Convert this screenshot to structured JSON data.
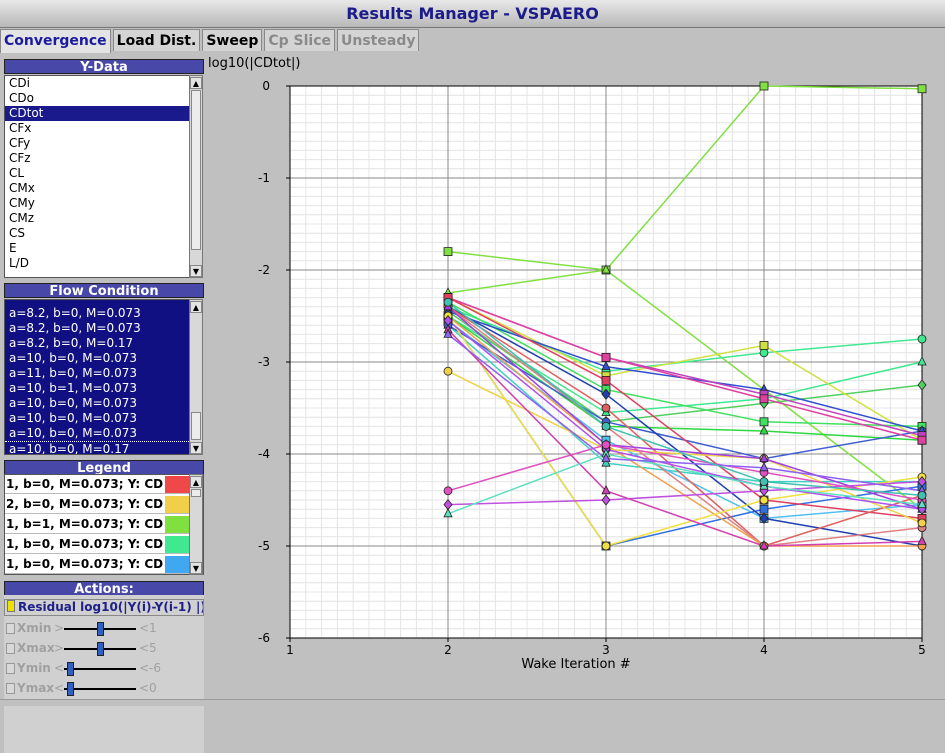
{
  "window": {
    "title": "Results Manager - VSPAERO"
  },
  "tabs": [
    {
      "label": "Convergence",
      "state": "active"
    },
    {
      "label": "Load Dist.",
      "state": "normal"
    },
    {
      "label": "Sweep",
      "state": "normal"
    },
    {
      "label": "Cp Slice",
      "state": "disabled"
    },
    {
      "label": "Unsteady",
      "state": "disabled"
    }
  ],
  "ydata": {
    "header": "Y-Data",
    "items": [
      "CDi",
      "CDo",
      "CDtot",
      "CFx",
      "CFy",
      "CFz",
      "CL",
      "CMx",
      "CMy",
      "CMz",
      "CS",
      "E",
      "L/D"
    ],
    "selected": "CDtot"
  },
  "flow": {
    "header": "Flow Condition",
    "items": [
      "a=8.2, b=0, M=0.073",
      "a=8.2, b=0, M=0.073",
      "a=8.2, b=0, M=0.17",
      "a=10, b=0, M=0.073",
      "a=11, b=0, M=0.073",
      "a=10, b=1, M=0.073",
      "a=10, b=0, M=0.073",
      "a=10, b=0, M=0.073",
      "a=10, b=0, M=0.073",
      "a=10, b=0, M=0.17"
    ]
  },
  "legend": {
    "header": "Legend",
    "rows": [
      {
        "text": "1, b=0, M=0.073; Y: CD",
        "color": "#f04848"
      },
      {
        "text": "2, b=0, M=0.073; Y: CD",
        "color": "#f0d048"
      },
      {
        "text": "1, b=1, M=0.073; Y: CD",
        "color": "#80e040"
      },
      {
        "text": "1, b=0, M=0.073; Y: CD",
        "color": "#40e890"
      },
      {
        "text": "1, b=0, M=0.073; Y: CD",
        "color": "#40a8f0"
      }
    ]
  },
  "actions": {
    "header": "Actions:",
    "residual_label": "Residual log10(|Y(i)-Y(i-1) |)",
    "sliders": [
      {
        "label": "Xmin",
        "lt": ">",
        "gt": "<",
        "value": "1",
        "pos": 0.5
      },
      {
        "label": "Xmax",
        "lt": ">",
        "gt": "<",
        "value": "5",
        "pos": 0.5
      },
      {
        "label": "Ymin",
        "lt": "<",
        "gt": "<",
        "value": "-6",
        "pos": 0.05
      },
      {
        "label": "Ymax",
        "lt": "<",
        "gt": "<",
        "value": "0",
        "pos": 0.05
      }
    ]
  },
  "colors": {
    "accent": "#1b1b8a",
    "header_bg": "#4848a8",
    "selection": "#1a1a8c"
  },
  "chart_data": {
    "type": "line",
    "ylabel": "log10(|CDtot|)",
    "xlabel": "Wake Iteration #",
    "xlim": [
      1,
      5
    ],
    "ylim": [
      -6,
      0
    ],
    "xticks": [
      1,
      2,
      3,
      4,
      5
    ],
    "yticks": [
      0,
      -1,
      -2,
      -3,
      -4,
      -5,
      -6
    ],
    "grid": true,
    "x": [
      2,
      3,
      4,
      5
    ],
    "series": [
      {
        "color": "#80e040",
        "marker": "square",
        "values": [
          -1.8,
          -2.0,
          0.0,
          -0.03
        ]
      },
      {
        "color": "#80e040",
        "marker": "triangle",
        "values": [
          -2.25,
          -2.0,
          -3.3,
          -4.6
        ]
      },
      {
        "color": "#40e890",
        "marker": "circle",
        "values": [
          -2.4,
          -3.1,
          -2.9,
          -2.75
        ]
      },
      {
        "color": "#40e890",
        "marker": "triangle",
        "values": [
          -2.5,
          -3.55,
          -3.4,
          -3.0
        ]
      },
      {
        "color": "#50d060",
        "marker": "diamond",
        "values": [
          -2.45,
          -3.65,
          -3.45,
          -3.25
        ]
      },
      {
        "color": "#d0e040",
        "marker": "square",
        "values": [
          -2.3,
          -3.15,
          -2.82,
          -3.85
        ]
      },
      {
        "color": "#40e060",
        "marker": "square",
        "values": [
          -2.35,
          -3.3,
          -3.65,
          -3.7
        ]
      },
      {
        "color": "#30d840",
        "marker": "triangle",
        "values": [
          -2.5,
          -3.7,
          -3.75,
          -3.85
        ]
      },
      {
        "color": "#40d0c0",
        "marker": "triangle",
        "values": [
          -2.6,
          -4.1,
          -4.3,
          -4.3
        ]
      },
      {
        "color": "#50c0f0",
        "marker": "square",
        "values": [
          -2.55,
          -3.85,
          -4.7,
          -4.55
        ]
      },
      {
        "color": "#3070e0",
        "marker": "square",
        "values": [
          -2.5,
          -5.0,
          -4.6,
          -4.35
        ]
      },
      {
        "color": "#4060d0",
        "marker": "circle",
        "values": [
          -2.6,
          -3.65,
          -4.05,
          -3.75
        ]
      },
      {
        "color": "#2040b0",
        "marker": "diamond",
        "values": [
          -2.4,
          -3.35,
          -4.7,
          -5.0
        ]
      },
      {
        "color": "#3050d0",
        "marker": "triangle",
        "values": [
          -2.45,
          -3.05,
          -3.3,
          -3.75
        ]
      },
      {
        "color": "#c040c0",
        "marker": "square",
        "values": [
          -2.3,
          -2.95,
          -3.35,
          -3.8
        ]
      },
      {
        "color": "#e040a0",
        "marker": "square",
        "values": [
          -2.3,
          -2.95,
          -3.4,
          -3.85
        ]
      },
      {
        "color": "#e04060",
        "marker": "square",
        "values": [
          -2.3,
          -3.2,
          -4.5,
          -4.7
        ]
      },
      {
        "color": "#e06060",
        "marker": "circle",
        "values": [
          -2.4,
          -3.5,
          -5.0,
          -4.45
        ]
      },
      {
        "color": "#e08080",
        "marker": "circle",
        "values": [
          -2.4,
          -3.7,
          -5.0,
          -4.8
        ]
      },
      {
        "color": "#f0a050",
        "marker": "circle",
        "values": [
          -2.5,
          -3.9,
          -5.0,
          -5.0
        ]
      },
      {
        "color": "#f0d048",
        "marker": "circle",
        "values": [
          -3.1,
          -3.95,
          -4.05,
          -4.75
        ]
      },
      {
        "color": "#f0e040",
        "marker": "circle",
        "values": [
          -2.5,
          -5.0,
          -4.5,
          -4.25
        ]
      },
      {
        "color": "#a040e0",
        "marker": "triangle",
        "values": [
          -2.4,
          -3.9,
          -4.05,
          -4.6
        ]
      },
      {
        "color": "#b050f0",
        "marker": "diamond",
        "values": [
          -2.55,
          -3.95,
          -4.35,
          -4.6
        ]
      },
      {
        "color": "#c050e0",
        "marker": "diamond",
        "values": [
          -4.55,
          -4.5,
          -4.4,
          -4.3
        ]
      },
      {
        "color": "#e050c0",
        "marker": "circle",
        "values": [
          -4.4,
          -3.9,
          -4.2,
          -4.5
        ]
      },
      {
        "color": "#d040b0",
        "marker": "triangle",
        "values": [
          -2.65,
          -4.4,
          -5.0,
          -4.95
        ]
      },
      {
        "color": "#60e0c0",
        "marker": "triangle",
        "values": [
          -4.65,
          -4.0,
          -4.35,
          -4.55
        ]
      },
      {
        "color": "#9060f0",
        "marker": "triangle",
        "values": [
          -2.7,
          -4.05,
          -4.15,
          -4.4
        ]
      },
      {
        "color": "#40c0b0",
        "marker": "circle",
        "values": [
          -2.35,
          -3.7,
          -4.3,
          -4.45
        ]
      }
    ]
  }
}
